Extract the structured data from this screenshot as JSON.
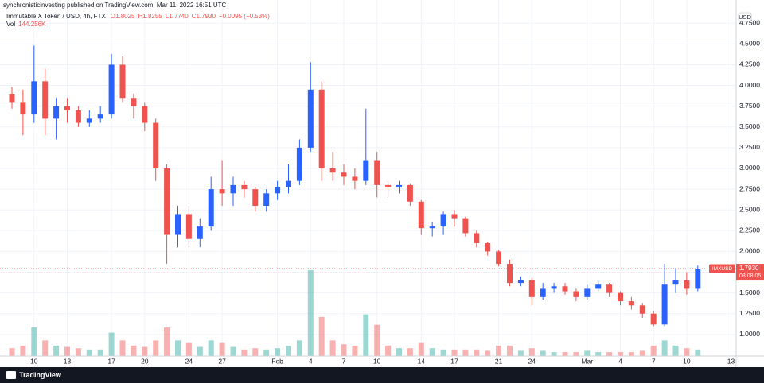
{
  "header": {
    "publisher": "synchronisticinvesting published on TradingView.com, Mar 11, 2022 16:51 UTC"
  },
  "chart_data": {
    "type": "candlestick",
    "title": "Immutable X Token / USD, 4h, FTX",
    "ohlc_labels": [
      "O1.8025",
      "H1.8255",
      "L1.7740",
      "C1.7930",
      "−0.0095 (−0.53%)"
    ],
    "volume_label": "Vol",
    "volume_value": "144.256K",
    "currency": "USD",
    "categories": [
      null,
      null,
      "10",
      null,
      null,
      "13",
      null,
      null,
      null,
      "17",
      null,
      null,
      "20",
      null,
      null,
      null,
      "24",
      null,
      null,
      "27",
      null,
      null,
      null,
      null,
      "Feb",
      null,
      null,
      "4",
      null,
      null,
      "7",
      null,
      null,
      "10",
      null,
      null,
      null,
      "14",
      null,
      null,
      "17",
      null,
      null,
      null,
      "21",
      null,
      null,
      "24",
      null,
      null,
      null,
      null,
      "Mar",
      null,
      null,
      "4",
      null,
      null,
      "7",
      null,
      null,
      "10",
      null,
      null,
      null,
      "13"
    ],
    "open": [
      3.9,
      3.8,
      3.65,
      4.05,
      3.6,
      3.75,
      3.7,
      3.55,
      3.6,
      3.65,
      4.25,
      3.85,
      3.75,
      3.55,
      3.0,
      2.2,
      2.45,
      2.15,
      2.3,
      2.75,
      2.7,
      2.8,
      2.75,
      2.55,
      2.7,
      2.78,
      2.85,
      3.25,
      3.95,
      3.0,
      2.95,
      2.9,
      2.85,
      3.1,
      2.8,
      2.78,
      2.8,
      2.6,
      2.28,
      2.3,
      2.45,
      2.4,
      2.22,
      2.1,
      2.0,
      1.85,
      1.62,
      1.65,
      1.45,
      1.55,
      1.58,
      1.52,
      1.45,
      1.55,
      1.6,
      1.5,
      1.4,
      1.35,
      1.25,
      1.12,
      1.6,
      1.65,
      1.55,
      null,
      null,
      null
    ],
    "high": [
      3.98,
      3.95,
      4.48,
      4.2,
      3.85,
      3.85,
      3.75,
      3.7,
      3.75,
      4.38,
      4.35,
      3.9,
      3.8,
      3.6,
      3.05,
      2.55,
      2.55,
      2.4,
      2.9,
      3.1,
      2.9,
      2.85,
      2.78,
      2.75,
      2.85,
      3.05,
      3.35,
      4.28,
      4.05,
      3.2,
      3.05,
      3.0,
      3.72,
      3.2,
      2.85,
      2.85,
      2.82,
      2.62,
      2.35,
      2.48,
      2.5,
      2.42,
      2.25,
      2.12,
      2.02,
      1.9,
      1.7,
      1.68,
      1.62,
      1.62,
      1.62,
      1.55,
      1.6,
      1.65,
      1.62,
      1.52,
      1.45,
      1.38,
      1.28,
      1.85,
      1.8,
      1.75,
      1.83,
      null,
      null,
      null
    ],
    "low": [
      3.72,
      3.4,
      3.55,
      3.4,
      3.35,
      3.55,
      3.5,
      3.5,
      3.55,
      3.6,
      3.8,
      3.6,
      3.45,
      2.85,
      1.85,
      2.05,
      2.05,
      2.05,
      2.25,
      2.55,
      2.55,
      2.65,
      2.48,
      2.48,
      2.62,
      2.7,
      2.8,
      3.2,
      2.85,
      2.85,
      2.8,
      2.75,
      2.8,
      2.65,
      2.65,
      2.7,
      2.55,
      2.2,
      2.18,
      2.2,
      2.3,
      2.18,
      2.05,
      1.95,
      1.82,
      1.58,
      1.58,
      1.35,
      1.42,
      1.5,
      1.48,
      1.4,
      1.42,
      1.52,
      1.45,
      1.35,
      1.3,
      1.2,
      1.1,
      1.1,
      1.5,
      1.48,
      1.52,
      null,
      null,
      null
    ],
    "close": [
      3.8,
      3.65,
      4.05,
      3.6,
      3.75,
      3.7,
      3.55,
      3.6,
      3.65,
      4.25,
      3.85,
      3.75,
      3.55,
      3.0,
      2.2,
      2.45,
      2.15,
      2.3,
      2.75,
      2.7,
      2.8,
      2.75,
      2.55,
      2.7,
      2.78,
      2.85,
      3.25,
      3.95,
      3.0,
      2.95,
      2.9,
      2.85,
      3.1,
      2.8,
      2.78,
      2.8,
      2.6,
      2.28,
      2.3,
      2.45,
      2.4,
      2.22,
      2.1,
      2.0,
      1.85,
      1.62,
      1.65,
      1.45,
      1.55,
      1.58,
      1.52,
      1.45,
      1.55,
      1.6,
      1.5,
      1.4,
      1.35,
      1.25,
      1.12,
      1.6,
      1.65,
      1.55,
      1.793,
      null,
      null,
      null
    ],
    "volume": [
      30,
      40,
      110,
      60,
      40,
      35,
      30,
      25,
      25,
      90,
      60,
      40,
      35,
      60,
      110,
      60,
      50,
      35,
      60,
      50,
      35,
      25,
      30,
      25,
      30,
      40,
      60,
      330,
      150,
      60,
      45,
      40,
      160,
      120,
      40,
      30,
      30,
      50,
      30,
      25,
      25,
      25,
      25,
      20,
      40,
      40,
      20,
      30,
      20,
      15,
      15,
      15,
      20,
      15,
      15,
      15,
      15,
      20,
      40,
      60,
      40,
      30,
      25,
      null,
      null,
      null
    ],
    "up_color": "#2962ff",
    "down_color": "#ef5350",
    "volume_up_color": "#26a69a",
    "volume_down_color": "#ef5350",
    "ylim": [
      0.74,
      5.03
    ],
    "yticks": [
      {
        "value": 1.0,
        "label": "1.0000"
      },
      {
        "value": 1.25,
        "label": "1.2500"
      },
      {
        "value": 1.5,
        "label": "1.5000"
      },
      {
        "value": 1.75,
        "label": "1.7500"
      },
      {
        "value": 2.0,
        "label": "2.0000"
      },
      {
        "value": 2.25,
        "label": "2.2500"
      },
      {
        "value": 2.5,
        "label": "2.5000"
      },
      {
        "value": 2.75,
        "label": "2.7500"
      },
      {
        "value": 3.0,
        "label": "3.0000"
      },
      {
        "value": 3.25,
        "label": "3.2500"
      },
      {
        "value": 3.5,
        "label": "3.5000"
      },
      {
        "value": 3.75,
        "label": "3.7500"
      },
      {
        "value": 4.0,
        "label": "4.0000"
      },
      {
        "value": 4.25,
        "label": "4.2500"
      },
      {
        "value": 4.5,
        "label": "4.5000"
      },
      {
        "value": 4.75,
        "label": "4.7500"
      }
    ],
    "grid": true,
    "price_tag": {
      "symbol": "IMXUSD",
      "price": "1.7930",
      "countdown": "03:08:05"
    }
  },
  "footer": {
    "brand": "TradingView"
  }
}
